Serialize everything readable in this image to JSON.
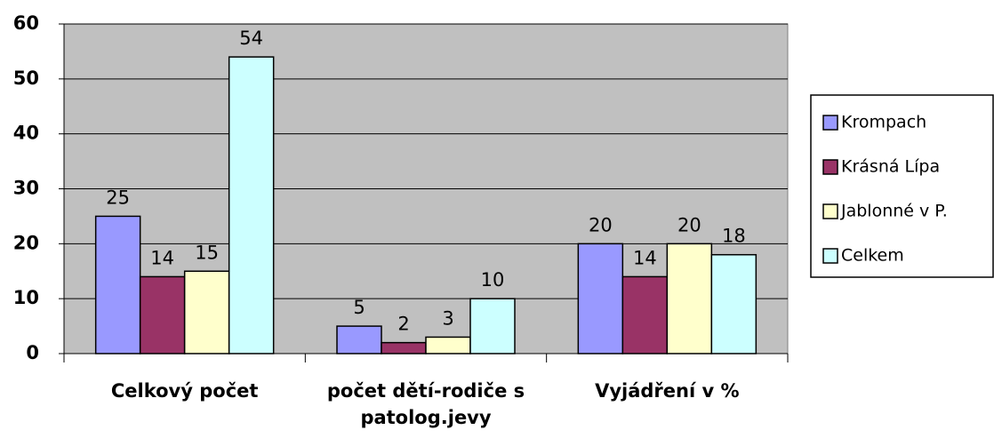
{
  "chart_data": {
    "type": "bar",
    "categories": [
      "Celkový počet",
      "počet dětí-rodiče s patolog.jevy",
      "Vyjádření v %"
    ],
    "series": [
      {
        "name": "Krompach",
        "color": "#9999ff",
        "values": [
          25,
          5,
          20
        ]
      },
      {
        "name": "Krásná Lípa",
        "color": "#993366",
        "values": [
          14,
          2,
          14
        ]
      },
      {
        "name": "Jablonné v P.",
        "color": "#ffffcc",
        "values": [
          15,
          3,
          20
        ]
      },
      {
        "name": "Celkem",
        "color": "#ccffff",
        "values": [
          54,
          10,
          18
        ]
      }
    ],
    "ylim": [
      0,
      60
    ],
    "yticks": [
      0,
      10,
      20,
      30,
      40,
      50,
      60
    ],
    "grid": true,
    "legend": "right"
  }
}
